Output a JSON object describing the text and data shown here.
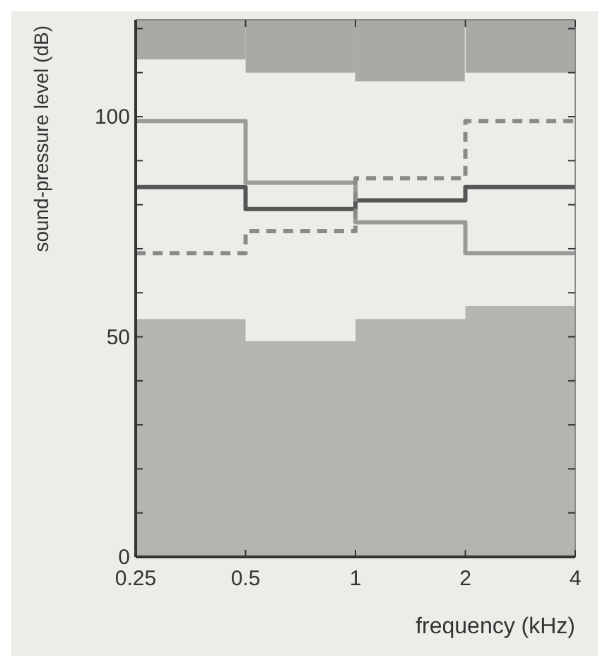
{
  "chart_data": {
    "type": "step",
    "xlabel": "frequency (kHz)",
    "ylabel": "sound-pressure level (dB)",
    "log": "x",
    "xlim": [
      0.25,
      4
    ],
    "xticks": [
      0.25,
      0.5,
      1,
      2,
      4
    ],
    "ylim": [
      0,
      122
    ],
    "yticks": [
      0,
      {
        "value": 10,
        "label": null
      },
      {
        "value": 20,
        "label": null
      },
      {
        "value": 30,
        "label": null
      },
      {
        "value": 40,
        "label": null
      },
      50,
      {
        "value": 60,
        "label": null
      },
      {
        "value": 70,
        "label": null
      },
      {
        "value": 80,
        "label": null
      },
      {
        "value": 90,
        "label": null
      },
      100,
      {
        "value": 110,
        "label": null
      },
      {
        "value": 120,
        "label": null
      }
    ],
    "grid": false,
    "series": [
      {
        "type": "area",
        "color": "#b4b4b0",
        "x": [
          0.25,
          0.5,
          1,
          2,
          4
        ],
        "values": [
          54,
          49,
          54,
          57,
          57
        ]
      },
      {
        "type": "bar",
        "color": "#a9a9a6",
        "x": [
          0.354,
          0.707,
          1.41,
          2.83
        ],
        "base": [
          113,
          110,
          108,
          110
        ],
        "values": [
          9,
          12,
          14,
          12
        ]
      },
      {
        "type": "step",
        "color": "#9a9a98",
        "line_style": "solid",
        "x": [
          0.25,
          0.5,
          1,
          2,
          4
        ],
        "values": [
          99,
          85,
          76,
          69,
          69
        ]
      },
      {
        "type": "step",
        "color": "#555555",
        "line_style": "solid",
        "x": [
          0.25,
          0.5,
          1,
          2,
          4
        ],
        "values": [
          84,
          79,
          81,
          84,
          84
        ]
      },
      {
        "type": "step",
        "color": "#8a8a88",
        "line_style": "dashed",
        "x": [
          0.25,
          0.5,
          1,
          2,
          4
        ],
        "values": [
          69,
          74,
          86,
          99,
          99
        ]
      }
    ]
  }
}
